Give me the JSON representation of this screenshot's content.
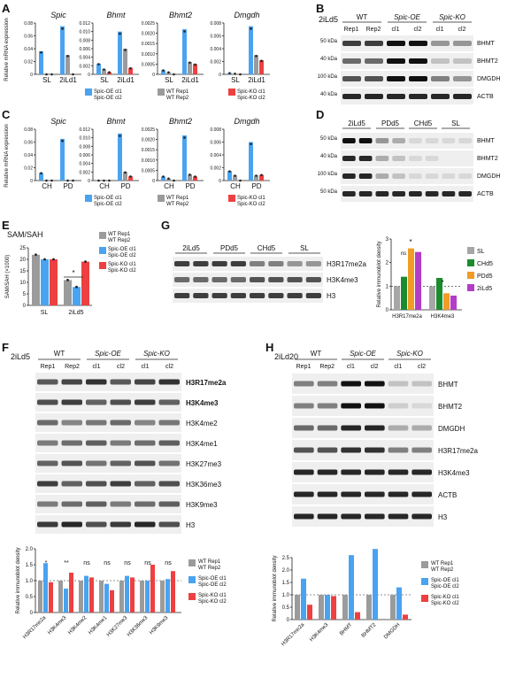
{
  "panels": {
    "A": "A",
    "B": "B",
    "C": "C",
    "D": "D",
    "E": "E",
    "F": "F",
    "G": "G",
    "H": "H"
  },
  "colors": {
    "wt": "#9b9b9b",
    "oe": "#4aa3f0",
    "ko": "#ee4040",
    "sl": "#a6a6a6",
    "chd5": "#1a8c2e",
    "pdd5": "#f29b26",
    "ild5": "#b43cc8"
  },
  "genes": [
    "Spic",
    "Bhmt",
    "Bhmt2",
    "Dmgdh"
  ],
  "expr_y_label": "Relative mRNA expression",
  "A": {
    "xcats": [
      "SL",
      "2iLd1"
    ],
    "yticks": [
      [
        "0.08",
        "0.06",
        "0.04",
        "0.02",
        "0"
      ],
      [
        "0.012",
        "0.010",
        "0.008",
        "0.006",
        "0.004",
        "0.002",
        "0"
      ],
      [
        "0.0025",
        "0.0020",
        "0.0015",
        "0.0010",
        "0.0005",
        "0"
      ],
      [
        "0.008",
        "0.006",
        "0.004",
        "0.002",
        "0"
      ]
    ],
    "legend": [
      {
        "label": "Spic-OE cl1",
        "label2": "Spic-OE cl2"
      },
      {
        "label": "WT Rep1",
        "label2": "WT Rep2"
      },
      {
        "label": "Spic-KO cl1",
        "label2": "Spic-KO cl2"
      }
    ]
  },
  "C": {
    "xcats": [
      "CH",
      "PD"
    ],
    "yticks": [
      [
        "0.08",
        "0.06",
        "0.04",
        "0.02",
        "0"
      ],
      [
        "0.012",
        "0.010",
        "0.008",
        "0.006",
        "0.004",
        "0.002",
        "0"
      ],
      [
        "0.0025",
        "0.0020",
        "0.0015",
        "0.0010",
        "0.0005",
        "0"
      ],
      [
        "0.008",
        "0.006",
        "0.004",
        "0.002",
        "0"
      ]
    ]
  },
  "B": {
    "cond": "2iLd5",
    "groups": [
      "WT",
      "Spic-OE",
      "Spic-KO"
    ],
    "lanes": [
      "Rep1",
      "Rep2",
      "cl1",
      "cl2",
      "cl1",
      "cl2"
    ],
    "markers": [
      "50 kDa",
      "40 kDa",
      "100 kDa",
      "40 kDa"
    ],
    "bands": [
      "BHMT",
      "BHMT2",
      "DMGDH",
      "ACTB"
    ]
  },
  "D": {
    "groups": [
      "2iLd5",
      "PDd5",
      "CHd5",
      "SL"
    ],
    "markers": [
      "50 kDa",
      "40 kDa",
      "100 kDa",
      "50 kDa"
    ],
    "bands": [
      "BHMT",
      "BHMT2",
      "DMGDH",
      "ACTB"
    ]
  },
  "E": {
    "title": "SAM/SAH",
    "ylabel": "SAM/SAH (×1000)",
    "yticks": [
      "25",
      "20",
      "15",
      "10",
      "5",
      "0"
    ],
    "xcats": [
      "SL",
      "2iLd5"
    ],
    "legend": [
      [
        "WT Rep1",
        "WT Rep2"
      ],
      [
        "Spic-OE cl1",
        "Spic-OE cl2"
      ],
      [
        "Spic-KO cl1",
        "Spic-KO cl2"
      ]
    ],
    "sig": "*"
  },
  "G": {
    "groups": [
      "2iLd5",
      "PDd5",
      "CHd5",
      "SL"
    ],
    "bands": [
      "H3R17me2a",
      "H3K4me3",
      "H3"
    ],
    "ylabel": "Relative immunoblot density",
    "yticks": [
      "3",
      "2",
      "1",
      "0"
    ],
    "xcats": [
      "H3R17me2a",
      "H3K4me3"
    ],
    "legend": [
      "SL",
      "CHd5",
      "PDd5",
      "2iLd5"
    ],
    "ns": "ns",
    "star": "*"
  },
  "F": {
    "cond": "2iLd5",
    "groups": [
      "WT",
      "Spic-OE",
      "Spic-KO"
    ],
    "lanes": [
      "Rep1",
      "Rep2",
      "cl1",
      "cl2",
      "cl1",
      "cl2"
    ],
    "bands": [
      "H3R17me2a",
      "H3K4me3",
      "H3K4me2",
      "H3K4me1",
      "H3K27me3",
      "H3K36me3",
      "H3K9me3",
      "H3"
    ],
    "ylabel": "Relative immunoblot density",
    "yticks": [
      "2.0",
      "1.5",
      "1.0",
      "0.5",
      "0"
    ],
    "xcats": [
      "H3R17me2a",
      "H3K4me3",
      "H3K4me2",
      "H3K4me1",
      "H3K27me3",
      "H3K36me3",
      "H3K9me3"
    ],
    "sigs": [
      "*",
      "**",
      "ns",
      "ns",
      "ns",
      "ns",
      "ns"
    ],
    "legend": [
      [
        "WT Rep1",
        "WT Rep2"
      ],
      [
        "Spic-OE cl1",
        "Spic-OE cl2"
      ],
      [
        "Spic-KO cl1",
        "Spic-KO cl2"
      ]
    ]
  },
  "H": {
    "cond": "2iLd20",
    "groups": [
      "WT",
      "Spic-OE",
      "Spic-KO"
    ],
    "lanes": [
      "Rep1",
      "Rep2",
      "cl1",
      "cl2",
      "cl1",
      "cl2"
    ],
    "bands": [
      "BHMT",
      "BHMT2",
      "DMGDH",
      "H3R17me2a",
      "H3K4me3",
      "ACTB",
      "H3"
    ],
    "ylabel": "Relative immunoblot density",
    "yticks": [
      "2.5",
      "2.0",
      "1.5",
      "1.0",
      "0.5",
      "0"
    ],
    "xcats": [
      "H3R17me2a",
      "H3K4me3",
      "BHMT",
      "BHMT2",
      "DMGDH"
    ],
    "legend": [
      [
        "WT Rep1",
        "WT Rep2"
      ],
      [
        "Spic-OE cl1",
        "Spic-OE cl2"
      ],
      [
        "Spic-KO cl1",
        "Spic-KO cl2"
      ]
    ]
  },
  "chart_data": [
    {
      "type": "bar",
      "panel": "A",
      "title": "Spic",
      "categories": [
        "SL",
        "2iLd1"
      ],
      "series": [
        {
          "name": "Spic-OE",
          "values": [
            0.036,
            0.075
          ]
        },
        {
          "name": "WT",
          "values": [
            0.0,
            0.03
          ]
        },
        {
          "name": "Spic-KO",
          "values": [
            0.0,
            0.0
          ]
        }
      ]
    },
    {
      "type": "bar",
      "panel": "A",
      "title": "Bhmt",
      "categories": [
        "SL",
        "2iLd1"
      ],
      "series": [
        {
          "name": "Spic-OE",
          "values": [
            0.0025,
            0.01
          ]
        },
        {
          "name": "WT",
          "values": [
            0.0012,
            0.006
          ]
        },
        {
          "name": "Spic-KO",
          "values": [
            0.0005,
            0.0015
          ]
        }
      ]
    },
    {
      "type": "bar",
      "panel": "A",
      "title": "Bhmt2",
      "categories": [
        "SL",
        "2iLd1"
      ],
      "series": [
        {
          "name": "Spic-OE",
          "values": [
            0.0002,
            0.0022
          ]
        },
        {
          "name": "WT",
          "values": [
            0.0001,
            0.0006
          ]
        },
        {
          "name": "Spic-KO",
          "values": [
            0.0,
            0.0005
          ]
        }
      ]
    },
    {
      "type": "bar",
      "panel": "A",
      "title": "Dmgdh",
      "categories": [
        "SL",
        "2iLd1"
      ],
      "series": [
        {
          "name": "Spic-OE",
          "values": [
            0.0002,
            0.0075
          ]
        },
        {
          "name": "WT",
          "values": [
            0.0001,
            0.003
          ]
        },
        {
          "name": "Spic-KO",
          "values": [
            0.0,
            0.0022
          ]
        }
      ]
    },
    {
      "type": "bar",
      "panel": "E",
      "title": "SAM/SAH",
      "categories": [
        "SL",
        "2iLd5"
      ],
      "series": [
        {
          "name": "WT",
          "values": [
            22,
            11
          ]
        },
        {
          "name": "Spic-OE",
          "values": [
            20,
            8
          ]
        },
        {
          "name": "Spic-KO",
          "values": [
            20,
            19
          ]
        }
      ]
    },
    {
      "type": "bar",
      "panel": "G",
      "categories": [
        "H3R17me2a",
        "H3K4me3"
      ],
      "series": [
        {
          "name": "SL",
          "values": [
            1.0,
            1.0
          ]
        },
        {
          "name": "CHd5",
          "values": [
            1.4,
            1.35
          ]
        },
        {
          "name": "PDd5",
          "values": [
            2.6,
            0.7
          ]
        },
        {
          "name": "2iLd5",
          "values": [
            2.45,
            0.6
          ]
        }
      ]
    },
    {
      "type": "bar",
      "panel": "F",
      "categories": [
        "H3R17me2a",
        "H3K4me3",
        "H3K4me2",
        "H3K4me1",
        "H3K27me3",
        "H3K36me3",
        "H3K9me3"
      ],
      "series": [
        {
          "name": "WT",
          "values": [
            1,
            1,
            1,
            1,
            1,
            1,
            1
          ]
        },
        {
          "name": "Spic-OE",
          "values": [
            1.55,
            0.75,
            1.15,
            0.9,
            1.15,
            1.0,
            1.05
          ]
        },
        {
          "name": "Spic-KO",
          "values": [
            0.95,
            1.25,
            1.1,
            0.7,
            1.1,
            1.5,
            1.3
          ]
        }
      ]
    },
    {
      "type": "bar",
      "panel": "H",
      "categories": [
        "H3R17me2a",
        "H3K4me3",
        "BHMT",
        "BHMT2",
        "DMGDH"
      ],
      "series": [
        {
          "name": "WT",
          "values": [
            1,
            1,
            1,
            1,
            1
          ]
        },
        {
          "name": "Spic-OE",
          "values": [
            1.65,
            1.0,
            2.6,
            2.85,
            1.3
          ]
        },
        {
          "name": "Spic-KO",
          "values": [
            0.6,
            0.95,
            0.3,
            0.0,
            0.2
          ]
        }
      ]
    }
  ]
}
